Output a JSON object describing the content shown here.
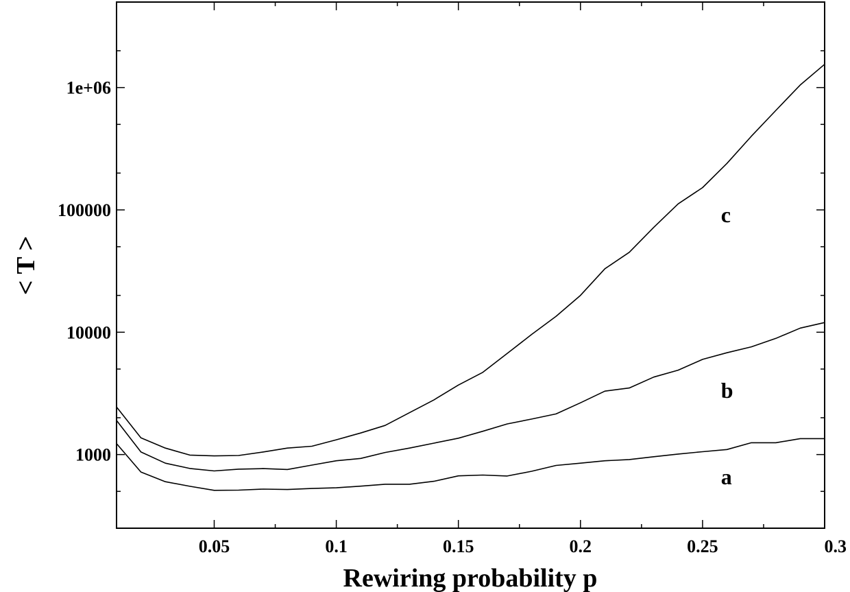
{
  "chart_data": {
    "type": "line",
    "xlabel": "Rewiring probability p",
    "ylabel": "< T >",
    "xlim": [
      0.01,
      0.3
    ],
    "ylim": [
      250,
      5000000
    ],
    "y_scale": "log",
    "grid": false,
    "x_ticks": [
      {
        "value": 0.05,
        "label": "0.05"
      },
      {
        "value": 0.1,
        "label": "0.1"
      },
      {
        "value": 0.15,
        "label": "0.15"
      },
      {
        "value": 0.2,
        "label": "0.2"
      },
      {
        "value": 0.25,
        "label": "0.25"
      },
      {
        "value": 0.3,
        "label": "0.3"
      }
    ],
    "y_ticks": [
      {
        "value": 1000,
        "label": "1000"
      },
      {
        "value": 10000,
        "label": "10000"
      },
      {
        "value": 100000,
        "label": "100000"
      },
      {
        "value": 1000000,
        "label": "1e+06"
      }
    ],
    "x": [
      0.01,
      0.02,
      0.03,
      0.04,
      0.05,
      0.06,
      0.07,
      0.08,
      0.09,
      0.1,
      0.11,
      0.12,
      0.13,
      0.14,
      0.15,
      0.16,
      0.17,
      0.18,
      0.19,
      0.2,
      0.21,
      0.22,
      0.23,
      0.24,
      0.25,
      0.26,
      0.27,
      0.28,
      0.29,
      0.3
    ],
    "series": [
      {
        "name": "a",
        "label_at": [
          0.255,
          650
        ],
        "values": [
          1230,
          720,
          600,
          550,
          510,
          512,
          522,
          518,
          528,
          535,
          552,
          572,
          572,
          605,
          670,
          680,
          668,
          730,
          815,
          850,
          890,
          910,
          960,
          1010,
          1055,
          1100,
          1250,
          1250,
          1350,
          1350
        ]
      },
      {
        "name": "b",
        "label_at": [
          0.255,
          3300
        ],
        "values": [
          1900,
          1050,
          850,
          770,
          735,
          760,
          768,
          755,
          820,
          890,
          930,
          1040,
          1130,
          1240,
          1360,
          1550,
          1780,
          1950,
          2150,
          2650,
          3300,
          3500,
          4300,
          4900,
          6000,
          6800,
          7600,
          8900,
          10800,
          12000
        ]
      },
      {
        "name": "c",
        "label_at": [
          0.255,
          90000
        ],
        "values": [
          2450,
          1370,
          1130,
          990,
          975,
          983,
          1050,
          1130,
          1170,
          1320,
          1500,
          1730,
          2200,
          2800,
          3700,
          4700,
          6700,
          9600,
          13500,
          20000,
          33000,
          45000,
          72000,
          112000,
          152000,
          240000,
          400000,
          650000,
          1050000,
          1550000
        ]
      }
    ]
  }
}
